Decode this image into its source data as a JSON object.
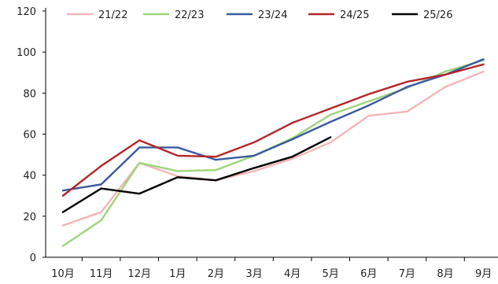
{
  "chart_data": {
    "type": "line",
    "title": "",
    "xlabel": "",
    "ylabel": "",
    "categories": [
      "10月",
      "11月",
      "12月",
      "1月",
      "2月",
      "3月",
      "4月",
      "5月",
      "6月",
      "7月",
      "8月",
      "9月"
    ],
    "ylim": [
      0,
      120
    ],
    "yticks": [
      0,
      20,
      40,
      60,
      80,
      100,
      120
    ],
    "grid": false,
    "legend_position": "top",
    "series": [
      {
        "name": "21/22",
        "color": "#f4b6b8",
        "values": [
          15.5,
          22,
          46,
          39.5,
          37.5,
          42,
          48,
          56,
          69,
          71,
          83,
          90.5
        ]
      },
      {
        "name": "22/23",
        "color": "#9fd47c",
        "values": [
          5.5,
          18,
          46,
          42,
          42.5,
          49.5,
          58,
          69.5,
          76,
          82.5,
          90.5,
          96
        ]
      },
      {
        "name": "23/24",
        "color": "#3a5ba0",
        "values": [
          32.5,
          35.5,
          53.5,
          53.5,
          47.5,
          49.5,
          57.5,
          66,
          74,
          83,
          89,
          96.5
        ]
      },
      {
        "name": "24/25",
        "color": "#b5252a",
        "values": [
          30,
          44.5,
          57,
          49.5,
          49,
          56,
          65.5,
          72.5,
          79.5,
          85.5,
          89,
          94
        ]
      },
      {
        "name": "25/26",
        "color": "#000000",
        "values": [
          22,
          33.5,
          31,
          39,
          37.5,
          43.5,
          49,
          58.5,
          null,
          null,
          null,
          null
        ]
      }
    ]
  }
}
